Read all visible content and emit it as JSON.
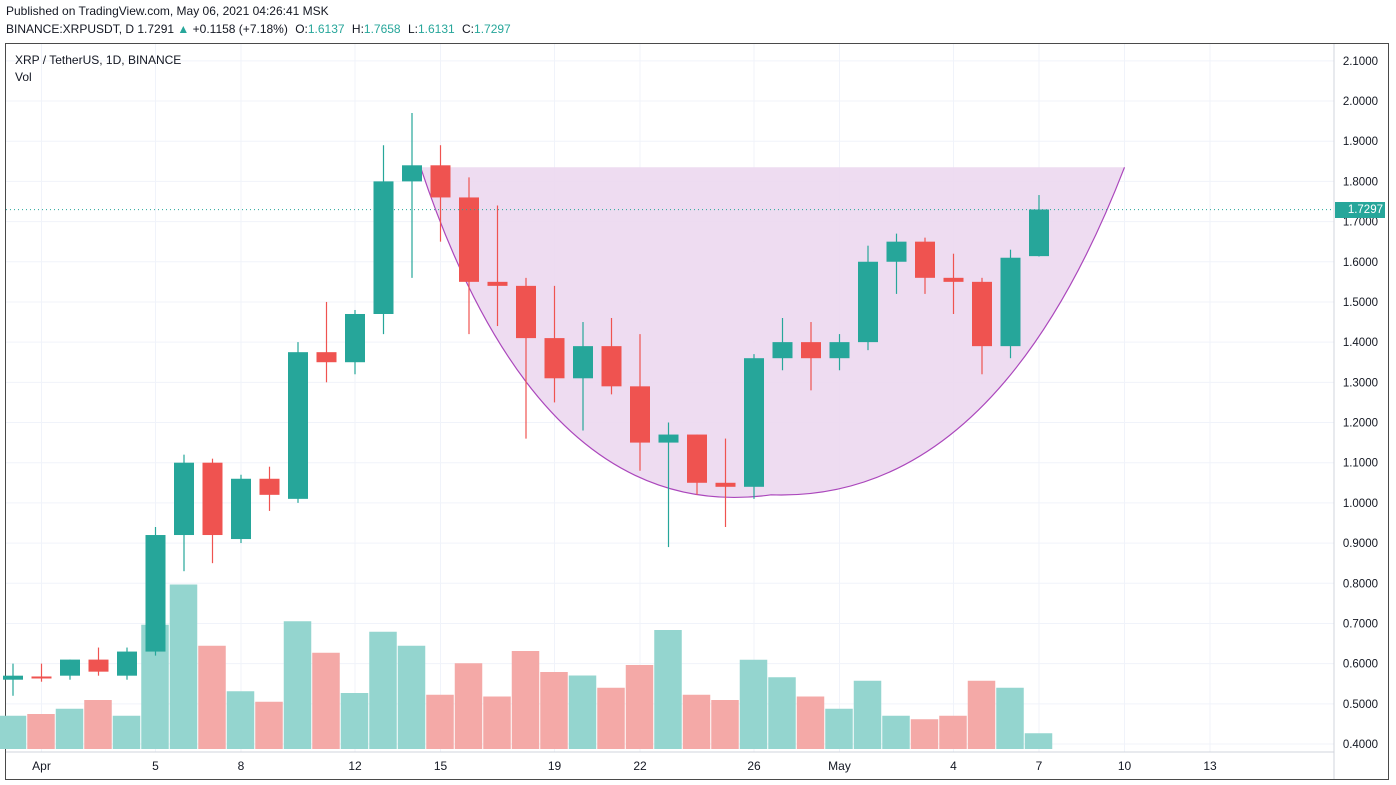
{
  "header": {
    "published": "Published on TradingView.com, May 06, 2021 04:26:41 MSK",
    "symbol": "BINANCE:XRPUSDT, D",
    "last": "1.7291",
    "arrow": "▲",
    "change": "+0.1158 (+7.18%)",
    "o_label": "O:",
    "o_value": "1.6137",
    "h_label": "H:",
    "h_value": "1.7658",
    "l_label": "L:",
    "l_value": "1.6131",
    "c_label": "C:",
    "c_value": "1.7297"
  },
  "legend": {
    "title": "XRP / TetherUS, 1D, BINANCE",
    "volume": "Vol"
  },
  "colors": {
    "up": "#26a69a",
    "down": "#ef5350",
    "vol_up": "#94d5cf",
    "vol_down": "#f4a9a7",
    "pattern_fill": "#ecd8f0",
    "pattern_stroke": "#ab47bc",
    "grid": "#f0f3fa",
    "axis_text": "#131722"
  },
  "chart_data": {
    "type": "candlestick",
    "title": "XRP / TetherUS, 1D, BINANCE",
    "y_axis": {
      "ticks": [
        "2.1000",
        "2.0000",
        "1.9000",
        "1.8000",
        "1.7000",
        "1.6000",
        "1.5000",
        "1.4000",
        "1.3000",
        "1.2000",
        "1.1000",
        "1.0000",
        "0.9000",
        "0.8000",
        "0.7000",
        "0.6000",
        "0.5000",
        "0.4000"
      ],
      "ylim": [
        0.37,
        2.15
      ]
    },
    "x_axis": {
      "ticks": [
        "Apr",
        "5",
        "8",
        "12",
        "15",
        "19",
        "22",
        "26",
        "May",
        "4",
        "7",
        "10",
        "13"
      ]
    },
    "current_price": "1.7297",
    "candles": [
      {
        "o": 0.56,
        "h": 0.6,
        "l": 0.52,
        "c": 0.57
      },
      {
        "o": 0.568,
        "h": 0.6,
        "l": 0.555,
        "c": 0.565
      },
      {
        "o": 0.57,
        "h": 0.61,
        "l": 0.56,
        "c": 0.61
      },
      {
        "o": 0.61,
        "h": 0.64,
        "l": 0.57,
        "c": 0.58
      },
      {
        "o": 0.57,
        "h": 0.64,
        "l": 0.56,
        "c": 0.63
      },
      {
        "o": 0.63,
        "h": 0.94,
        "l": 0.62,
        "c": 0.92
      },
      {
        "o": 0.92,
        "h": 1.12,
        "l": 0.83,
        "c": 1.1
      },
      {
        "o": 1.1,
        "h": 1.11,
        "l": 0.85,
        "c": 0.92
      },
      {
        "o": 0.91,
        "h": 1.07,
        "l": 0.9,
        "c": 1.06
      },
      {
        "o": 1.06,
        "h": 1.09,
        "l": 0.98,
        "c": 1.02
      },
      {
        "o": 1.01,
        "h": 1.4,
        "l": 1.0,
        "c": 1.375
      },
      {
        "o": 1.375,
        "h": 1.5,
        "l": 1.3,
        "c": 1.35
      },
      {
        "o": 1.35,
        "h": 1.48,
        "l": 1.32,
        "c": 1.47
      },
      {
        "o": 1.47,
        "h": 1.89,
        "l": 1.42,
        "c": 1.8
      },
      {
        "o": 1.8,
        "h": 1.97,
        "l": 1.56,
        "c": 1.84
      },
      {
        "o": 1.84,
        "h": 1.89,
        "l": 1.65,
        "c": 1.76
      },
      {
        "o": 1.76,
        "h": 1.81,
        "l": 1.42,
        "c": 1.55
      },
      {
        "o": 1.55,
        "h": 1.74,
        "l": 1.44,
        "c": 1.54
      },
      {
        "o": 1.54,
        "h": 1.56,
        "l": 1.16,
        "c": 1.41
      },
      {
        "o": 1.41,
        "h": 1.54,
        "l": 1.25,
        "c": 1.31
      },
      {
        "o": 1.31,
        "h": 1.45,
        "l": 1.18,
        "c": 1.39
      },
      {
        "o": 1.39,
        "h": 1.46,
        "l": 1.27,
        "c": 1.29
      },
      {
        "o": 1.29,
        "h": 1.42,
        "l": 1.08,
        "c": 1.15
      },
      {
        "o": 1.15,
        "h": 1.2,
        "l": 0.89,
        "c": 1.17
      },
      {
        "o": 1.17,
        "h": 1.17,
        "l": 1.02,
        "c": 1.05
      },
      {
        "o": 1.05,
        "h": 1.16,
        "l": 0.94,
        "c": 1.04
      },
      {
        "o": 1.04,
        "h": 1.37,
        "l": 1.01,
        "c": 1.36
      },
      {
        "o": 1.36,
        "h": 1.46,
        "l": 1.33,
        "c": 1.4
      },
      {
        "o": 1.4,
        "h": 1.45,
        "l": 1.28,
        "c": 1.36
      },
      {
        "o": 1.36,
        "h": 1.42,
        "l": 1.33,
        "c": 1.4
      },
      {
        "o": 1.4,
        "h": 1.64,
        "l": 1.38,
        "c": 1.6
      },
      {
        "o": 1.6,
        "h": 1.67,
        "l": 1.52,
        "c": 1.65
      },
      {
        "o": 1.65,
        "h": 1.66,
        "l": 1.52,
        "c": 1.56
      },
      {
        "o": 1.56,
        "h": 1.62,
        "l": 1.47,
        "c": 1.55
      },
      {
        "o": 1.55,
        "h": 1.56,
        "l": 1.32,
        "c": 1.39
      },
      {
        "o": 1.39,
        "h": 1.63,
        "l": 1.36,
        "c": 1.61
      },
      {
        "o": 1.614,
        "h": 1.766,
        "l": 1.613,
        "c": 1.73
      }
    ],
    "volume_relative": [
      0.19,
      0.2,
      0.23,
      0.28,
      0.19,
      0.71,
      0.94,
      0.59,
      0.33,
      0.27,
      0.73,
      0.55,
      0.32,
      0.67,
      0.59,
      0.31,
      0.49,
      0.3,
      0.56,
      0.44,
      0.42,
      0.35,
      0.48,
      0.68,
      0.31,
      0.28,
      0.51,
      0.41,
      0.3,
      0.23,
      0.39,
      0.19,
      0.17,
      0.19,
      0.39,
      0.35,
      0.09
    ],
    "pattern": {
      "type": "cup",
      "rim_price": 1.835,
      "bottom_price": 1.02
    }
  }
}
